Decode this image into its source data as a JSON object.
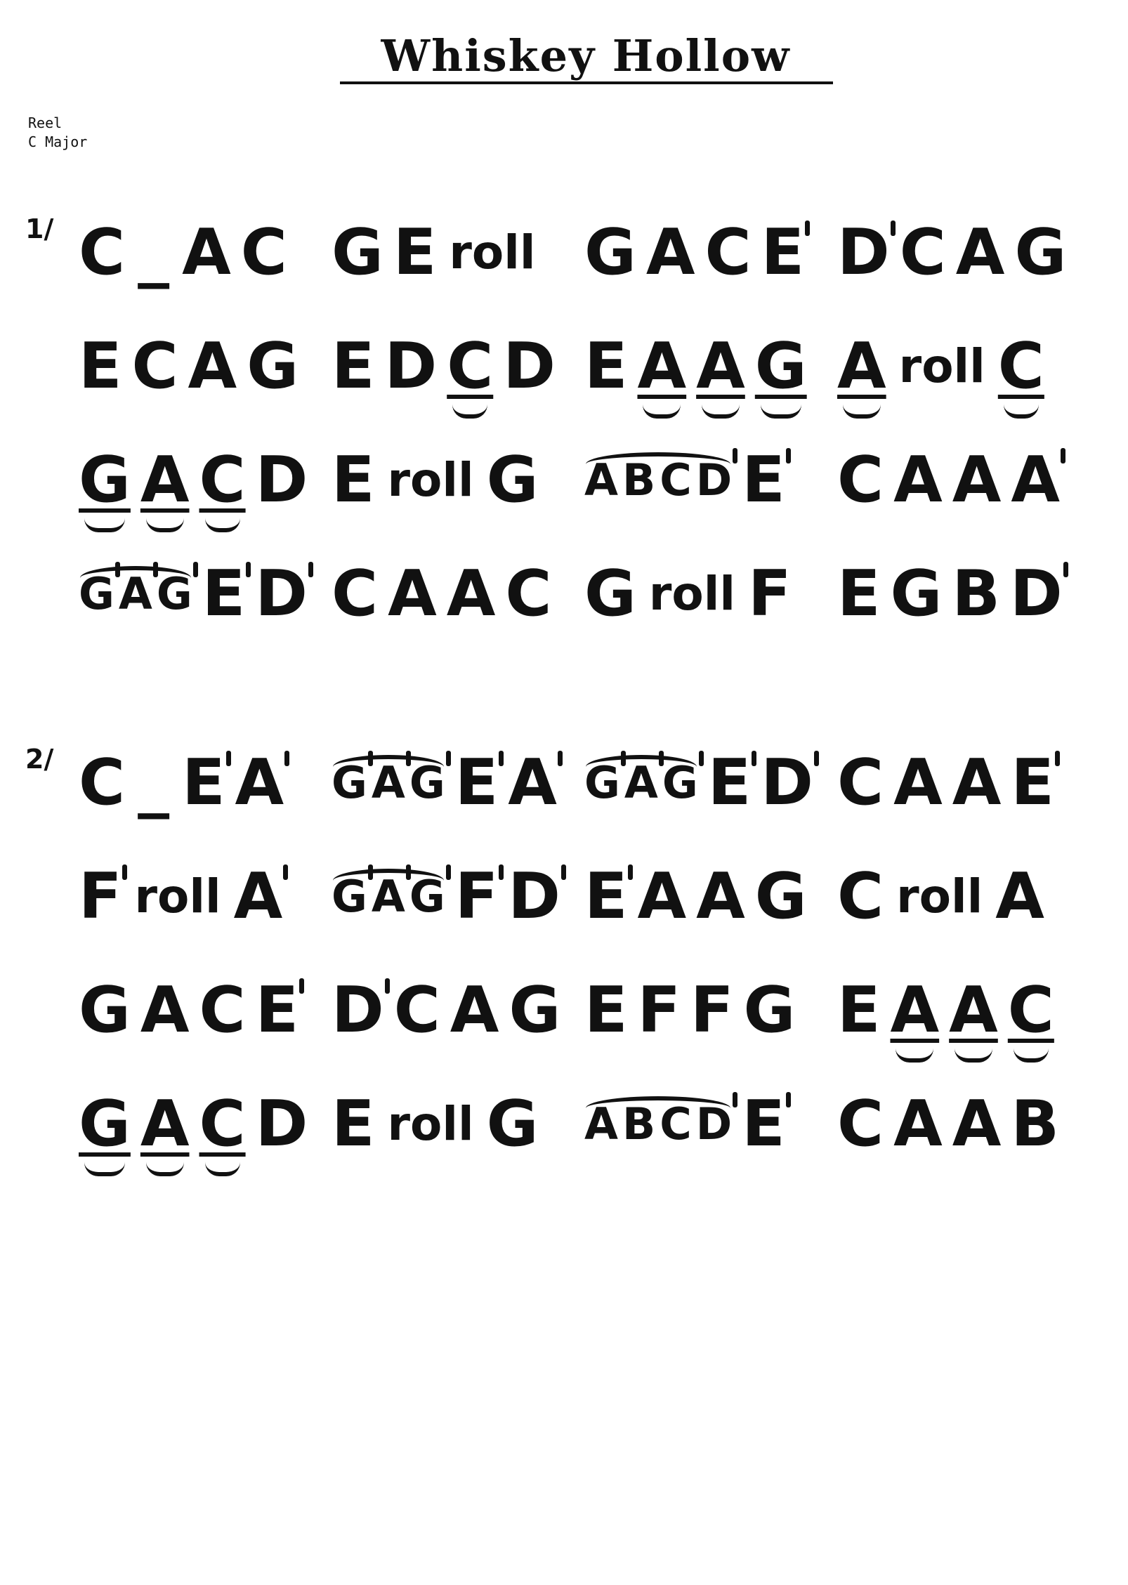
{
  "title": "Whiskey Hollow",
  "meta": {
    "type": "Reel",
    "key": "C Major"
  },
  "parts": [
    {
      "marker": "1/",
      "rows": [
        [
          [
            {
              "t": "C"
            },
            {
              "t": "_",
              "k": "blank"
            },
            {
              "t": "A"
            },
            {
              "t": "C"
            }
          ],
          [
            {
              "t": "G"
            },
            {
              "t": "E"
            },
            {
              "t": "roll",
              "k": "roll"
            }
          ],
          [
            {
              "t": "G"
            },
            {
              "t": "A"
            },
            {
              "t": "C"
            },
            {
              "t": "E",
              "hi": true
            }
          ],
          [
            {
              "t": "D",
              "hi": true
            },
            {
              "t": "C"
            },
            {
              "t": "A"
            },
            {
              "t": "G"
            }
          ]
        ],
        [
          [
            {
              "t": "E"
            },
            {
              "t": "C"
            },
            {
              "t": "A"
            },
            {
              "t": "G"
            }
          ],
          [
            {
              "t": "E"
            },
            {
              "t": "D"
            },
            {
              "t": "C",
              "lo": true
            },
            {
              "t": "D"
            }
          ],
          [
            {
              "t": "E"
            },
            {
              "t": "A",
              "lo": true
            },
            {
              "t": "A",
              "lo": true
            },
            {
              "t": "G",
              "lo": true
            }
          ],
          [
            {
              "t": "A",
              "lo": true
            },
            {
              "t": "roll",
              "k": "roll"
            },
            {
              "t": "C",
              "lo": true
            }
          ]
        ],
        [
          [
            {
              "t": "G",
              "lo": true
            },
            {
              "t": "A",
              "lo": true
            },
            {
              "t": "C",
              "lo": true
            },
            {
              "t": "D"
            }
          ],
          [
            {
              "t": "E"
            },
            {
              "t": "roll",
              "k": "roll"
            },
            {
              "t": "G"
            }
          ],
          [
            {
              "slur": [
                {
                  "t": "A"
                },
                {
                  "t": "B"
                },
                {
                  "t": "C"
                },
                {
                  "t": "D",
                  "hi": true
                }
              ]
            },
            {
              "t": "E",
              "hi": true
            }
          ],
          [
            {
              "t": "C"
            },
            {
              "t": "A"
            },
            {
              "t": "A"
            },
            {
              "t": "A",
              "hi": true
            }
          ]
        ],
        [
          [
            {
              "slur": [
                {
                  "t": "G",
                  "hi": true
                },
                {
                  "t": "A",
                  "hi": true
                },
                {
                  "t": "G",
                  "hi": true
                }
              ]
            },
            {
              "t": "E",
              "hi": true
            },
            {
              "t": "D",
              "hi": true
            }
          ],
          [
            {
              "t": "C"
            },
            {
              "t": "A"
            },
            {
              "t": "A"
            },
            {
              "t": "C"
            }
          ],
          [
            {
              "t": "G"
            },
            {
              "t": "roll",
              "k": "roll"
            },
            {
              "t": "F"
            }
          ],
          [
            {
              "t": "E"
            },
            {
              "t": "G"
            },
            {
              "t": "B"
            },
            {
              "t": "D",
              "hi": true
            }
          ]
        ]
      ]
    },
    {
      "marker": "2/",
      "rows": [
        [
          [
            {
              "t": "C"
            },
            {
              "t": "_",
              "k": "blank"
            },
            {
              "t": "E",
              "hi": true
            },
            {
              "t": "A",
              "hi": true
            }
          ],
          [
            {
              "slur": [
                {
                  "t": "G",
                  "hi": true
                },
                {
                  "t": "A",
                  "hi": true
                },
                {
                  "t": "G",
                  "hi": true
                }
              ]
            },
            {
              "t": "E",
              "hi": true
            },
            {
              "t": "A",
              "hi": true
            }
          ],
          [
            {
              "slur": [
                {
                  "t": "G",
                  "hi": true
                },
                {
                  "t": "A",
                  "hi": true
                },
                {
                  "t": "G",
                  "hi": true
                }
              ]
            },
            {
              "t": "E",
              "hi": true
            },
            {
              "t": "D",
              "hi": true
            }
          ],
          [
            {
              "t": "C"
            },
            {
              "t": "A"
            },
            {
              "t": "A"
            },
            {
              "t": "E",
              "hi": true
            }
          ]
        ],
        [
          [
            {
              "t": "F",
              "hi": true
            },
            {
              "t": "roll",
              "k": "roll"
            },
            {
              "t": "A",
              "hi": true
            }
          ],
          [
            {
              "slur": [
                {
                  "t": "G",
                  "hi": true
                },
                {
                  "t": "A",
                  "hi": true
                },
                {
                  "t": "G",
                  "hi": true
                }
              ]
            },
            {
              "t": "F",
              "hi": true
            },
            {
              "t": "D",
              "hi": true
            }
          ],
          [
            {
              "t": "E",
              "hi": true
            },
            {
              "t": "A"
            },
            {
              "t": "A"
            },
            {
              "t": "G"
            }
          ],
          [
            {
              "t": "C"
            },
            {
              "t": "roll",
              "k": "roll"
            },
            {
              "t": "A"
            }
          ]
        ],
        [
          [
            {
              "t": "G"
            },
            {
              "t": "A"
            },
            {
              "t": "C"
            },
            {
              "t": "E",
              "hi": true
            }
          ],
          [
            {
              "t": "D",
              "hi": true
            },
            {
              "t": "C"
            },
            {
              "t": "A"
            },
            {
              "t": "G"
            }
          ],
          [
            {
              "t": "E"
            },
            {
              "t": "F"
            },
            {
              "t": "F"
            },
            {
              "t": "G"
            }
          ],
          [
            {
              "t": "E"
            },
            {
              "t": "A",
              "lo": true
            },
            {
              "t": "A",
              "lo": true
            },
            {
              "t": "C",
              "lo": true
            }
          ]
        ],
        [
          [
            {
              "t": "G",
              "lo": true
            },
            {
              "t": "A",
              "lo": true
            },
            {
              "t": "C",
              "lo": true
            },
            {
              "t": "D"
            }
          ],
          [
            {
              "t": "E"
            },
            {
              "t": "roll",
              "k": "roll"
            },
            {
              "t": "G"
            }
          ],
          [
            {
              "slur": [
                {
                  "t": "A"
                },
                {
                  "t": "B"
                },
                {
                  "t": "C"
                },
                {
                  "t": "D",
                  "hi": true
                }
              ]
            },
            {
              "t": "E",
              "hi": true
            }
          ],
          [
            {
              "t": "C"
            },
            {
              "t": "A"
            },
            {
              "t": "A"
            },
            {
              "t": "B"
            }
          ]
        ]
      ]
    }
  ]
}
